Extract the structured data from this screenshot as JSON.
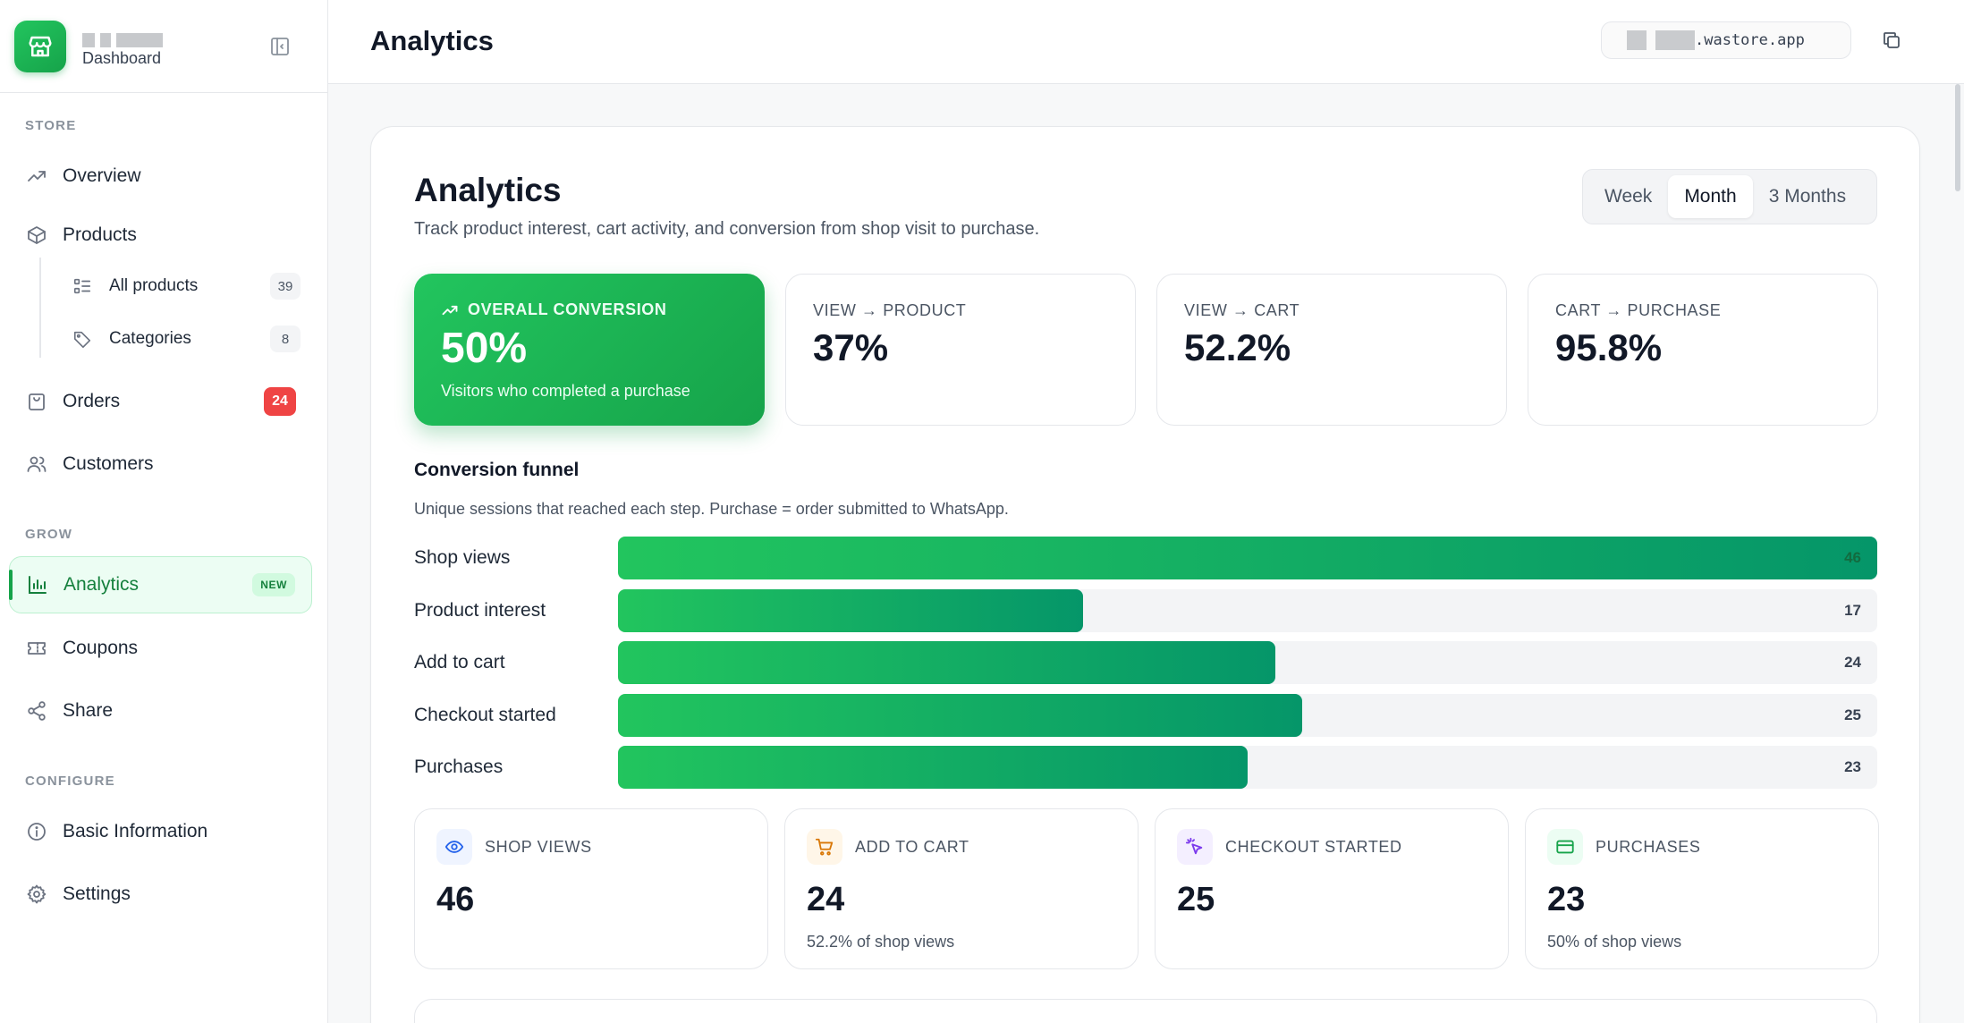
{
  "brand": {
    "subtitle": "Dashboard"
  },
  "sidebar": {
    "sections": {
      "store": "STORE",
      "grow": "GROW",
      "configure": "CONFIGURE"
    },
    "items": {
      "overview": {
        "label": "Overview",
        "icon": "trending-up-icon"
      },
      "products": {
        "label": "Products",
        "icon": "box-icon"
      },
      "all_products": {
        "label": "All products",
        "count": "39",
        "icon": "list-icon"
      },
      "categories": {
        "label": "Categories",
        "count": "8",
        "icon": "tag-icon"
      },
      "orders": {
        "label": "Orders",
        "badge": "24",
        "icon": "shopping-bag-icon"
      },
      "customers": {
        "label": "Customers",
        "icon": "users-icon"
      },
      "analytics": {
        "label": "Analytics",
        "badge": "NEW",
        "icon": "bar-chart-icon"
      },
      "coupons": {
        "label": "Coupons",
        "icon": "ticket-icon"
      },
      "share": {
        "label": "Share",
        "icon": "share-icon"
      },
      "basic_information": {
        "label": "Basic Information",
        "icon": "info-icon"
      },
      "settings": {
        "label": "Settings",
        "icon": "gear-icon"
      }
    }
  },
  "topbar": {
    "title": "Analytics",
    "store_url_suffix": ".wastore.app"
  },
  "main": {
    "title": "Analytics",
    "subtitle": "Track product interest, cart activity, and conversion from shop visit to purchase.",
    "range": {
      "options": [
        "Week",
        "Month",
        "3 Months"
      ],
      "selected": "Month"
    },
    "stats": [
      {
        "label": "OVERALL CONVERSION",
        "value": "50%",
        "note": "Visitors who completed a purchase"
      },
      {
        "label": "VIEW → PRODUCT",
        "value": "37%"
      },
      {
        "label": "VIEW → CART",
        "value": "52.2%"
      },
      {
        "label": "CART → PURCHASE",
        "value": "95.8%"
      }
    ],
    "funnel": {
      "title": "Conversion funnel",
      "subtitle": "Unique sessions that reached each step. Purchase = order submitted to WhatsApp.",
      "steps": [
        {
          "label": "Shop views",
          "count": 46
        },
        {
          "label": "Product interest",
          "count": 17
        },
        {
          "label": "Add to cart",
          "count": 24
        },
        {
          "label": "Checkout started",
          "count": 25
        },
        {
          "label": "Purchases",
          "count": 23
        }
      ]
    },
    "metrics": [
      {
        "label": "SHOP VIEWS",
        "value": "46",
        "note": "",
        "icon": "eye-icon",
        "color": "#2563eb",
        "bg": "#eff4ff"
      },
      {
        "label": "ADD TO CART",
        "value": "24",
        "note": "52.2% of shop views",
        "icon": "cart-icon",
        "color": "#d97706",
        "bg": "#fff6e8"
      },
      {
        "label": "CHECKOUT STARTED",
        "value": "25",
        "note": "",
        "icon": "pointer-click-icon",
        "color": "#7c3aed",
        "bg": "#f4efff"
      },
      {
        "label": "PURCHASES",
        "value": "23",
        "note": "50% of shop views",
        "icon": "credit-card-icon",
        "color": "#16a34a",
        "bg": "#ecfdf3"
      }
    ]
  },
  "colors": {
    "accent": "#16a34a",
    "accent_light": "#22c55e",
    "badge_red": "#ef4444"
  }
}
